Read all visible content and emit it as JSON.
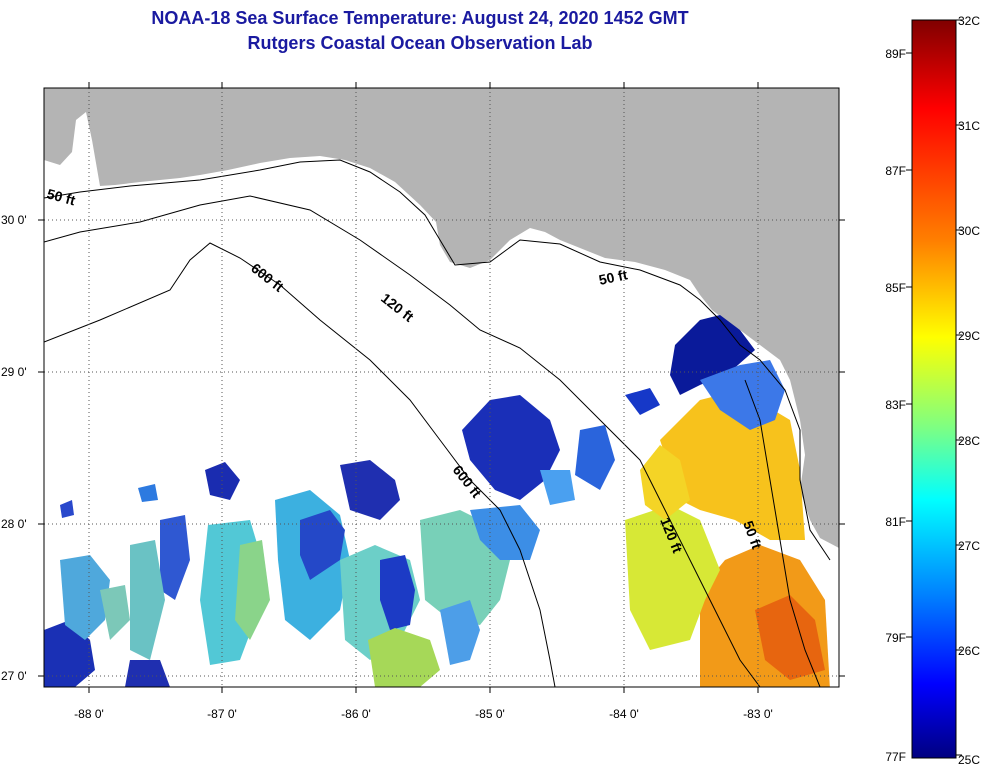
{
  "header": {
    "title": "NOAA-18 Sea Surface Temperature:  August 24, 2020 1452 GMT",
    "subtitle": "Rutgers Coastal Ocean Observation Lab"
  },
  "map": {
    "lon_labels": [
      "-88 0'",
      "-87 0'",
      "-86 0'",
      "-85 0'",
      "-84 0'",
      "-83 0'"
    ],
    "lat_labels": [
      "30 0'",
      "29 0'",
      "28 0'",
      "27 0'"
    ],
    "contour_labels": {
      "fifty_nw": "50 ft",
      "fifty_ne": "50 ft",
      "fifty_se": "50 ft",
      "one_twenty_n": "120 ft",
      "one_twenty_s": "120 ft",
      "six_hundred_n": "600 ft",
      "six_hundred_s": "600 ft"
    },
    "colors": {
      "land": "#b4b4b4",
      "ocean_nodata": "#ffffff"
    }
  },
  "colorbar": {
    "fahrenheit": [
      "89F",
      "87F",
      "85F",
      "83F",
      "81F",
      "79F",
      "77F"
    ],
    "celsius": [
      "32C",
      "31C",
      "30C",
      "29C",
      "28C",
      "27C",
      "26C",
      "25C"
    ],
    "colors": [
      "#800000",
      "#ff0000",
      "#ff8000",
      "#ffff00",
      "#80ff80",
      "#00ffff",
      "#0080ff",
      "#0000ff",
      "#000080"
    ]
  }
}
